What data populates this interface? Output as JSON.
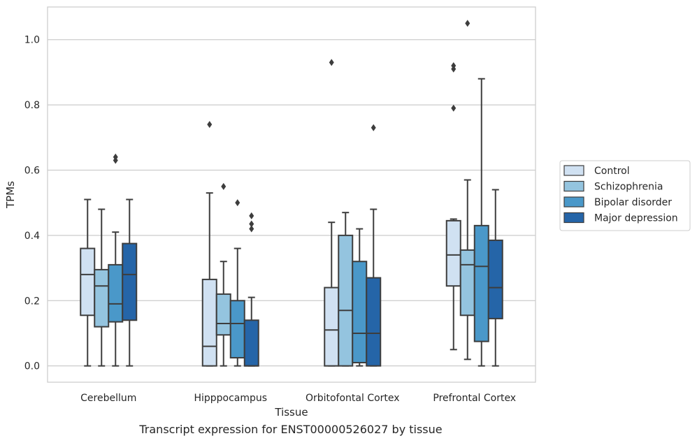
{
  "chart_data": {
    "type": "box",
    "xlabel": "Tissue",
    "ylabel": "TPMs",
    "ylim": [
      -0.05,
      1.1
    ],
    "yticks": [
      0.0,
      0.2,
      0.4,
      0.6,
      0.8,
      1.0
    ],
    "ytick_labels": [
      "0.0",
      "0.2",
      "0.4",
      "0.6",
      "0.8",
      "1.0"
    ],
    "grid": "horizontal",
    "legend_position": "right",
    "categories": [
      "Cerebellum",
      "Hipppocampus",
      "Orbitofontal Cortex",
      "Prefrontal Cortex"
    ],
    "series": [
      {
        "name": "Control",
        "color": "#d0e1f2",
        "boxes": [
          {
            "whislo": 0.0,
            "q1": 0.155,
            "med": 0.28,
            "q3": 0.36,
            "whishi": 0.51,
            "fliers": []
          },
          {
            "whislo": 0.0,
            "q1": 0.0,
            "med": 0.06,
            "q3": 0.265,
            "whishi": 0.53,
            "fliers": [
              0.74
            ]
          },
          {
            "whislo": 0.0,
            "q1": 0.0,
            "med": 0.11,
            "q3": 0.24,
            "whishi": 0.44,
            "fliers": [
              0.93
            ]
          },
          {
            "whislo": 0.05,
            "q1": 0.245,
            "med": 0.34,
            "q3": 0.445,
            "whishi": 0.45,
            "fliers": [
              0.79,
              0.91,
              0.92
            ]
          }
        ]
      },
      {
        "name": "Schizophrenia",
        "color": "#94c4df",
        "boxes": [
          {
            "whislo": 0.0,
            "q1": 0.12,
            "med": 0.245,
            "q3": 0.295,
            "whishi": 0.48,
            "fliers": []
          },
          {
            "whislo": 0.0,
            "q1": 0.095,
            "med": 0.13,
            "q3": 0.22,
            "whishi": 0.32,
            "fliers": [
              0.55
            ]
          },
          {
            "whislo": 0.0,
            "q1": 0.0,
            "med": 0.17,
            "q3": 0.4,
            "whishi": 0.47,
            "fliers": []
          },
          {
            "whislo": 0.02,
            "q1": 0.155,
            "med": 0.31,
            "q3": 0.355,
            "whishi": 0.57,
            "fliers": [
              1.05
            ]
          }
        ]
      },
      {
        "name": "Bipolar disorder",
        "color": "#4a98c9",
        "boxes": [
          {
            "whislo": 0.0,
            "q1": 0.135,
            "med": 0.19,
            "q3": 0.31,
            "whishi": 0.41,
            "fliers": [
              0.63,
              0.64
            ]
          },
          {
            "whislo": 0.0,
            "q1": 0.025,
            "med": 0.13,
            "q3": 0.2,
            "whishi": 0.36,
            "fliers": [
              0.5
            ]
          },
          {
            "whislo": 0.0,
            "q1": 0.01,
            "med": 0.1,
            "q3": 0.32,
            "whishi": 0.42,
            "fliers": []
          },
          {
            "whislo": 0.0,
            "q1": 0.075,
            "med": 0.305,
            "q3": 0.43,
            "whishi": 0.88,
            "fliers": []
          }
        ]
      },
      {
        "name": "Major depression",
        "color": "#2565a8",
        "boxes": [
          {
            "whislo": 0.0,
            "q1": 0.14,
            "med": 0.28,
            "q3": 0.375,
            "whishi": 0.51,
            "fliers": []
          },
          {
            "whislo": 0.0,
            "q1": 0.0,
            "med": 0.0,
            "q3": 0.14,
            "whishi": 0.21,
            "fliers": [
              0.42,
              0.435,
              0.46
            ]
          },
          {
            "whislo": 0.0,
            "q1": 0.0,
            "med": 0.1,
            "q3": 0.27,
            "whishi": 0.48,
            "fliers": [
              0.73
            ]
          },
          {
            "whislo": 0.0,
            "q1": 0.145,
            "med": 0.24,
            "q3": 0.385,
            "whishi": 0.54,
            "fliers": []
          }
        ]
      }
    ]
  },
  "caption": "Transcript expression for ENST00000526027 by tissue"
}
